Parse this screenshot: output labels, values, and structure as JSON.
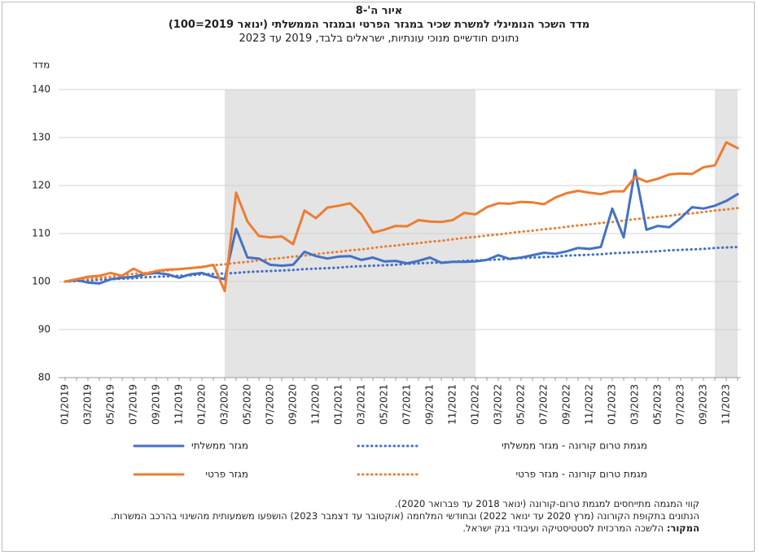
{
  "chart_data": {
    "type": "line",
    "figure_label": "איור ה'-8",
    "title": "מדד השכר הנומינלי למשרת שכיר במגזר הפרטי ובמגזר הממשלתי (ינואר 2019=100)",
    "subtitle": "נתונים חודשיים מנוכי עונתיות, ישראלים בלבד, 2019 עד 2023",
    "y_label": "מדד",
    "categories": [
      "01/2019",
      null,
      "03/2019",
      null,
      "05/2019",
      null,
      "07/2019",
      null,
      "09/2019",
      null,
      "11/2019",
      null,
      "01/2020",
      null,
      "03/2020",
      null,
      "05/2020",
      null,
      "07/2020",
      null,
      "09/2020",
      null,
      "11/2020",
      null,
      "01/2021",
      null,
      "03/2021",
      null,
      "05/2021",
      null,
      "07/2021",
      null,
      "09/2021",
      null,
      "11/2021",
      null,
      "01/2022",
      null,
      "03/2022",
      null,
      "05/2022",
      null,
      "07/2022",
      null,
      "09/2022",
      null,
      "11/2022",
      null,
      "01/2023",
      null,
      "03/2023",
      null,
      "05/2023",
      null,
      "07/2023",
      null,
      "09/2023",
      null,
      "11/2023",
      null
    ],
    "series": [
      {
        "name": "מגזר ממשלתי",
        "color": "#4472c4",
        "style": "solid",
        "values": [
          100,
          100.3,
          99.8,
          99.6,
          100.5,
          100.8,
          101,
          101.5,
          101.8,
          101.5,
          100.8,
          101.5,
          101.8,
          101,
          100.5,
          111,
          105,
          104.8,
          103.5,
          103.3,
          103.5,
          106.2,
          105.3,
          104.8,
          105.2,
          105.3,
          104.5,
          105,
          104.2,
          104.3,
          103.8,
          104.3,
          105,
          103.9,
          104.1,
          104.1,
          104.2,
          104.5,
          105.5,
          104.7,
          105,
          105.5,
          106,
          105.8,
          106.3,
          107,
          106.8,
          107.2,
          115.2,
          109.2,
          123.2,
          110.8,
          111.6,
          111.3,
          113.2,
          115.5,
          115.2,
          115.8,
          116.8,
          118.2
        ]
      },
      {
        "name": "מגזר פרטי",
        "color": "#ed7d31",
        "style": "solid",
        "values": [
          100,
          100.5,
          101,
          101.2,
          101.8,
          101.2,
          102.7,
          101.5,
          102.2,
          102.5,
          102.6,
          102.8,
          103,
          103.5,
          98,
          118.5,
          112.5,
          109.5,
          109.2,
          109.4,
          107.8,
          114.8,
          113.2,
          115.4,
          115.8,
          116.3,
          114,
          110.2,
          110.8,
          111.6,
          111.5,
          112.8,
          112.5,
          112.4,
          112.8,
          114.3,
          114,
          115.5,
          116.3,
          116.2,
          116.6,
          116.5,
          116.1,
          117.5,
          118.4,
          118.9,
          118.5,
          118.2,
          118.8,
          118.8,
          121.8,
          120.8,
          121.4,
          122.3,
          122.5,
          122.4,
          123.8,
          124.2,
          129,
          127.8
        ]
      },
      {
        "name": "מגמת טרום קורונה - מגזר ממשלתי",
        "color": "#4472c4",
        "style": "dotted",
        "values": [
          100,
          100.1,
          100.2,
          100.4,
          100.5,
          100.6,
          100.7,
          100.9,
          101.0,
          101.1,
          101.2,
          101.3,
          101.5,
          101.6,
          101.7,
          101.8,
          102.0,
          102.1,
          102.2,
          102.3,
          102.4,
          102.6,
          102.7,
          102.8,
          102.9,
          103.1,
          103.2,
          103.3,
          103.4,
          103.5,
          103.7,
          103.8,
          103.9,
          104.0,
          104.1,
          104.3,
          104.4,
          104.5,
          104.6,
          104.8,
          104.9,
          105.0,
          105.1,
          105.2,
          105.4,
          105.5,
          105.6,
          105.7,
          105.9,
          106.0,
          106.1,
          106.2,
          106.3,
          106.5,
          106.6,
          106.7,
          106.8,
          107.0,
          107.1,
          107.2
        ]
      },
      {
        "name": "מגמת טרום קורונה - מגזר פרטי",
        "color": "#ed7d31",
        "style": "dotted",
        "values": [
          100,
          100.3,
          100.5,
          100.8,
          101.0,
          101.3,
          101.6,
          101.8,
          102.1,
          102.3,
          102.6,
          102.8,
          103.1,
          103.4,
          103.6,
          103.9,
          104.1,
          104.4,
          104.7,
          104.9,
          105.2,
          105.4,
          105.7,
          106.0,
          106.2,
          106.5,
          106.7,
          107.0,
          107.3,
          107.5,
          107.8,
          108.0,
          108.3,
          108.5,
          108.8,
          109.1,
          109.3,
          109.6,
          109.8,
          110.1,
          110.4,
          110.6,
          110.9,
          111.1,
          111.4,
          111.7,
          111.9,
          112.2,
          112.4,
          112.7,
          113.0,
          113.2,
          113.5,
          113.7,
          114.0,
          114.2,
          114.5,
          114.8,
          115.0,
          115.3
        ]
      }
    ],
    "shaded_periods": [
      {
        "from": 14,
        "to": 36
      },
      {
        "from": 57,
        "to": 59
      }
    ],
    "shade_color": "#e4e4e4",
    "ylim": [
      80,
      140
    ],
    "yticks": [
      80,
      90,
      100,
      110,
      120,
      130,
      140
    ],
    "grid": true,
    "notes": [
      "קווי המגמה מתייחסים למגמת טרום-קורונה (ינואר 2018 עד פברואר 2020).",
      "הנתונים בתקופת הקורונה (מרץ 2020 עד ינואר 2022) ובחודשי המלחמה (אוקטובר עד דצמבר 2023) הושפעו משמעותית מהשינוי בהרכב המשרות."
    ],
    "source_label": "המקור:",
    "source": "הלשכה המרכזית לסטטיסטיקה ועיבודי בנק ישראל."
  }
}
